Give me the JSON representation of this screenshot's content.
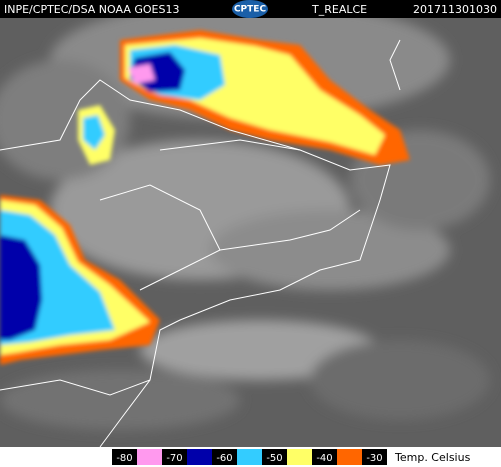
{
  "header": {
    "source": "INPE/CPTEC/DSA NOAA GOES13",
    "logo": "CPTEC",
    "product": "T_REALCE",
    "timestamp": "201711301030"
  },
  "legend": {
    "labels": [
      -80,
      -70,
      -60,
      -50,
      -40,
      -30
    ],
    "colors": [
      "#ff99ee",
      "#0000aa",
      "#33ccff",
      "#ffff66",
      "#ff6600"
    ],
    "unit": "Temp. Celsius"
  }
}
